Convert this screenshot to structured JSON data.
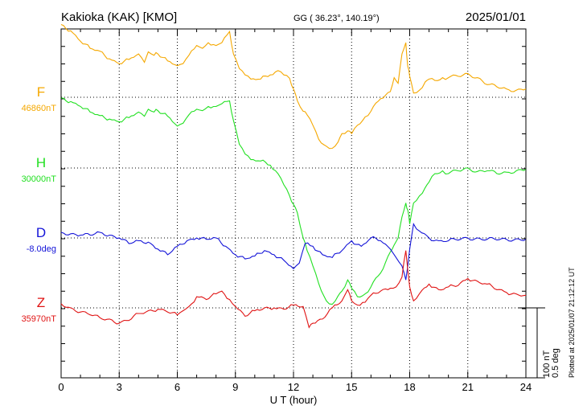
{
  "header": {
    "title": "Kakioka (KAK)  [KMO]",
    "coords": "GG ( 36.23°, 140.19°)",
    "date": "2025/01/01"
  },
  "footer": {
    "plotted": "Plotted at 2025/01/07 21:12:12 UT"
  },
  "colors": {
    "F": "#f5a800",
    "H": "#22e022",
    "D": "#1414d8",
    "Z": "#e01414"
  },
  "scale": {
    "nt": "100 nT",
    "deg": "0.5 deg"
  },
  "chart_data": {
    "type": "line",
    "xlabel": "U T (hour)",
    "xlim": [
      0,
      24
    ],
    "xticks": [
      0,
      3,
      6,
      9,
      12,
      15,
      18,
      21,
      24
    ],
    "grid": true,
    "series": [
      {
        "name": "F",
        "baseline": "46860nT",
        "unit": "nT",
        "x": [
          0,
          0.5,
          1,
          1.5,
          2,
          2.5,
          3,
          3.5,
          4,
          4.3,
          4.5,
          4.8,
          5,
          5.5,
          6,
          6.3,
          6.6,
          7,
          7.3,
          7.6,
          8,
          8.3,
          8.7,
          8.9,
          9.2,
          9.5,
          9.8,
          10.3,
          10.8,
          11.2,
          11.5,
          11.8,
          12,
          12.2,
          12.5,
          12.7,
          13,
          13.3,
          13.7,
          14,
          14.3,
          14.5,
          14.8,
          15,
          15.3,
          15.7,
          16,
          16.5,
          17,
          17.2,
          17.4,
          17.6,
          17.8,
          17.9,
          18,
          18.2,
          18.5,
          18.8,
          19,
          19.3,
          19.7,
          20,
          20.5,
          21,
          21.5,
          22,
          22.5,
          23,
          23.5,
          24
        ],
        "values": [
          104,
          95,
          80,
          70,
          66,
          55,
          48,
          54,
          62,
          50,
          65,
          60,
          62,
          52,
          45,
          48,
          60,
          74,
          70,
          78,
          74,
          78,
          94,
          62,
          41,
          32,
          26,
          26,
          32,
          38,
          32,
          27,
          12,
          -5,
          -20,
          -25,
          -40,
          -60,
          -70,
          -73,
          -64,
          -52,
          -48,
          -52,
          -40,
          -28,
          -20,
          -2,
          8,
          28,
          20,
          62,
          78,
          44,
          30,
          6,
          10,
          22,
          26,
          24,
          28,
          28,
          30,
          34,
          28,
          18,
          15,
          12,
          10,
          12
        ]
      },
      {
        "name": "H",
        "baseline": "30000nT",
        "unit": "nT",
        "x": [
          0,
          0.5,
          1,
          1.5,
          2,
          2.5,
          3,
          3.5,
          4,
          4.3,
          4.5,
          4.8,
          5,
          5.5,
          6,
          6.3,
          6.6,
          7,
          7.3,
          7.6,
          8,
          8.3,
          8.7,
          8.9,
          9.2,
          9.5,
          9.8,
          10.3,
          10.8,
          11.2,
          11.5,
          11.8,
          12,
          12.2,
          12.5,
          12.7,
          13,
          13.3,
          13.7,
          14,
          14.3,
          14.5,
          14.8,
          15,
          15.3,
          15.7,
          16,
          16.5,
          17,
          17.2,
          17.4,
          17.6,
          17.8,
          17.9,
          18,
          18.2,
          18.5,
          18.8,
          19,
          19.3,
          19.7,
          20,
          20.5,
          21,
          21.5,
          22,
          22.5,
          23,
          23.5,
          24
        ],
        "values": [
          100,
          95,
          88,
          80,
          75,
          70,
          66,
          72,
          80,
          74,
          84,
          80,
          82,
          74,
          60,
          64,
          76,
          84,
          82,
          88,
          88,
          92,
          96,
          68,
          34,
          20,
          12,
          10,
          4,
          -8,
          -24,
          -40,
          -52,
          -64,
          -100,
          -118,
          -140,
          -165,
          -190,
          -195,
          -183,
          -176,
          -160,
          -172,
          -184,
          -180,
          -170,
          -150,
          -120,
          -110,
          -100,
          -70,
          -50,
          -60,
          -80,
          -50,
          -40,
          -28,
          -20,
          -8,
          -4,
          -8,
          -4,
          0,
          -5,
          -4,
          -8,
          -6,
          -4,
          -2
        ]
      },
      {
        "name": "D",
        "baseline": "-8.0deg",
        "unit": "deg",
        "x": [
          0,
          0.5,
          1,
          1.5,
          2,
          2.5,
          3,
          3.5,
          4,
          4.5,
          5,
          5.5,
          6,
          6.5,
          7,
          7.5,
          8,
          8.5,
          9,
          9.5,
          10,
          10.5,
          11,
          11.5,
          12,
          12.3,
          12.6,
          13,
          13.5,
          14,
          14.5,
          15,
          15.5,
          16,
          16.5,
          17,
          17.3,
          17.6,
          17.8,
          18,
          18.2,
          18.5,
          19,
          19.5,
          20,
          21,
          22,
          23,
          24
        ],
        "values": [
          0.04,
          0.03,
          0.02,
          0.02,
          0.04,
          0.02,
          0.0,
          -0.04,
          -0.02,
          -0.03,
          -0.08,
          -0.12,
          -0.06,
          -0.02,
          0.0,
          -0.01,
          0.0,
          -0.06,
          -0.12,
          -0.15,
          -0.13,
          -0.09,
          -0.12,
          -0.16,
          -0.22,
          -0.18,
          -0.04,
          -0.06,
          -0.12,
          -0.14,
          -0.09,
          -0.02,
          -0.06,
          0.0,
          -0.02,
          -0.08,
          -0.14,
          -0.2,
          -0.3,
          -0.08,
          0.1,
          0.05,
          0.0,
          -0.02,
          -0.02,
          0.0,
          -0.01,
          -0.01,
          -0.01
        ]
      },
      {
        "name": "Z",
        "baseline": "35970nT",
        "unit": "nT",
        "x": [
          0,
          0.5,
          1,
          1.5,
          2,
          2.5,
          3,
          3.5,
          4,
          4.5,
          5,
          5.5,
          6,
          6.3,
          6.6,
          7,
          7.5,
          8,
          8.3,
          8.7,
          9,
          9.5,
          10,
          10.5,
          11,
          11.5,
          12,
          12.5,
          12.8,
          13,
          13.5,
          14,
          14.5,
          14.8,
          15,
          15.3,
          15.7,
          16,
          16.5,
          17,
          17.3,
          17.6,
          17.8,
          18,
          18.2,
          18.5,
          19,
          19.5,
          20,
          20.5,
          21,
          21.5,
          22,
          22.5,
          23,
          23.5,
          24
        ],
        "values": [
          6,
          0,
          -6,
          -10,
          -14,
          -16,
          -22,
          -18,
          -8,
          -4,
          -2,
          -6,
          -10,
          -4,
          2,
          16,
          12,
          20,
          24,
          12,
          2,
          -12,
          -4,
          0,
          0,
          -2,
          4,
          2,
          -28,
          -22,
          -16,
          0,
          10,
          26,
          10,
          4,
          8,
          18,
          24,
          28,
          30,
          44,
          82,
          30,
          10,
          20,
          34,
          26,
          30,
          32,
          42,
          38,
          34,
          26,
          22,
          20,
          18
        ]
      }
    ]
  }
}
